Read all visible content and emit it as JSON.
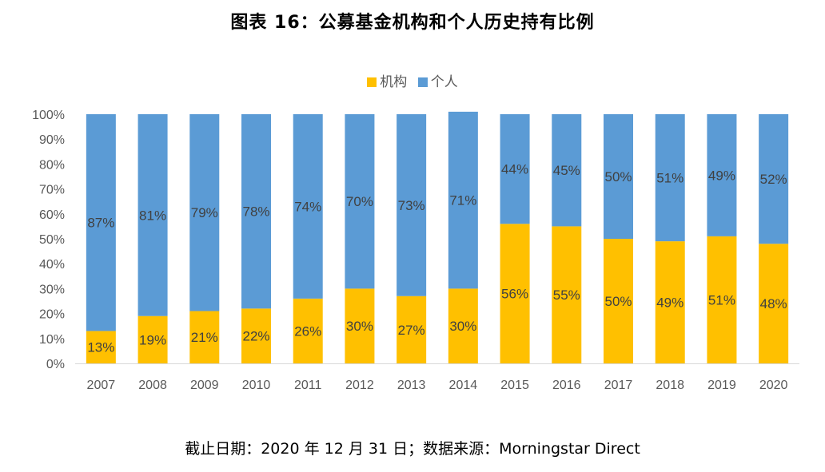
{
  "title": "图表 16：公募基金机构和个人历史持有比例",
  "source": "截止日期：2020 年 12 月 31 日；数据来源：Morningstar Direct",
  "colors": {
    "institution": "#FFC000",
    "individual": "#5B9BD5",
    "axis_text": "#595959",
    "label_text": "#404040",
    "gridline": "#D9D9D9"
  },
  "chart_data": {
    "type": "bar",
    "stacked": true,
    "normalized_percent": true,
    "categories": [
      "2007",
      "2008",
      "2009",
      "2010",
      "2011",
      "2012",
      "2013",
      "2014",
      "2015",
      "2016",
      "2017",
      "2018",
      "2019",
      "2020"
    ],
    "series": [
      {
        "name": "机构",
        "values": [
          13,
          19,
          21,
          22,
          26,
          30,
          27,
          30,
          56,
          55,
          50,
          49,
          51,
          48
        ],
        "labels": [
          "13%",
          "19%",
          "21%",
          "22%",
          "26%",
          "30%",
          "27%",
          "30%",
          "56%",
          "55%",
          "50%",
          "49%",
          "51%",
          "48%"
        ]
      },
      {
        "name": "个人",
        "values": [
          87,
          81,
          79,
          78,
          74,
          70,
          73,
          71,
          44,
          45,
          50,
          51,
          49,
          52
        ],
        "labels": [
          "87%",
          "81%",
          "79%",
          "78%",
          "74%",
          "70%",
          "73%",
          "71%",
          "44%",
          "45%",
          "50%",
          "51%",
          "49%",
          "52%"
        ]
      }
    ],
    "y_ticks": [
      "0%",
      "10%",
      "20%",
      "30%",
      "40%",
      "50%",
      "60%",
      "70%",
      "80%",
      "90%",
      "100%"
    ],
    "ylim": [
      0,
      100
    ],
    "legend_position": "top-center",
    "grid": false
  }
}
